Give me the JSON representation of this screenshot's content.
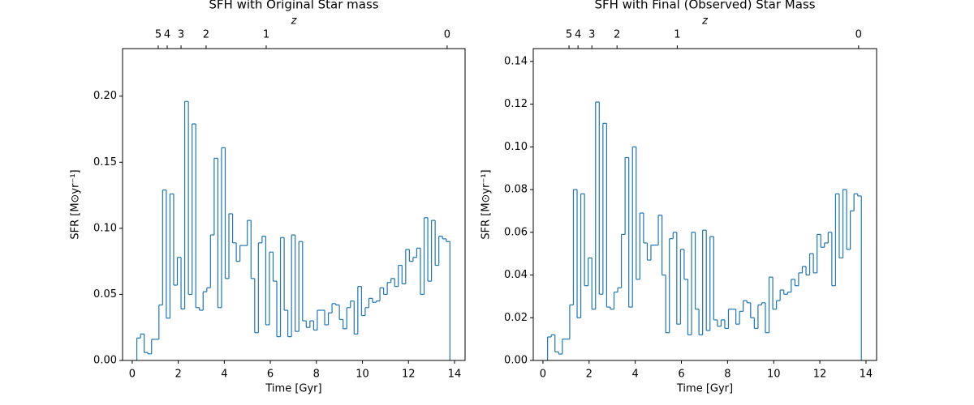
{
  "chart_data": [
    {
      "type": "histogram",
      "title": "SFH with Original Star mass",
      "xlabel": "Time [Gyr]",
      "ylabel": "SFR [M⊙yr⁻¹]",
      "x2label": "z",
      "color": "#1f77b4",
      "bins": [
        0.2,
        0.36,
        0.52,
        0.68,
        0.84,
        1.0,
        1.16,
        1.32,
        1.48,
        1.64,
        1.8,
        1.96,
        2.12,
        2.28,
        2.44,
        2.6,
        2.76,
        2.92,
        3.08,
        3.24,
        3.4,
        3.56,
        3.72,
        3.88,
        4.04,
        4.2,
        4.36,
        4.52,
        4.68,
        4.84,
        5.0,
        5.16,
        5.32,
        5.48,
        5.64,
        5.8,
        5.96,
        6.12,
        6.28,
        6.44,
        6.6,
        6.76,
        6.92,
        7.08,
        7.24,
        7.4,
        7.56,
        7.72,
        7.88,
        8.04,
        8.2,
        8.36,
        8.52,
        8.68,
        8.84,
        9.0,
        9.16,
        9.32,
        9.48,
        9.64,
        9.8,
        9.96,
        10.12,
        10.28,
        10.44,
        10.6,
        10.76,
        10.92,
        11.08,
        11.24,
        11.4,
        11.56,
        11.72,
        11.88,
        12.04,
        12.2,
        12.36,
        12.52,
        12.68,
        12.84,
        13.0,
        13.16,
        13.32,
        13.48,
        13.64,
        13.8
      ],
      "values": [
        0.017,
        0.02,
        0.006,
        0.005,
        0.016,
        0.016,
        0.042,
        0.129,
        0.032,
        0.126,
        0.057,
        0.078,
        0.039,
        0.196,
        0.05,
        0.179,
        0.04,
        0.038,
        0.052,
        0.055,
        0.095,
        0.153,
        0.04,
        0.161,
        0.062,
        0.111,
        0.089,
        0.075,
        0.087,
        0.087,
        0.106,
        0.062,
        0.021,
        0.089,
        0.094,
        0.027,
        0.082,
        0.06,
        0.018,
        0.093,
        0.038,
        0.018,
        0.095,
        0.022,
        0.09,
        0.03,
        0.025,
        0.03,
        0.023,
        0.038,
        0.038,
        0.027,
        0.036,
        0.043,
        0.042,
        0.031,
        0.024,
        0.04,
        0.045,
        0.02,
        0.056,
        0.034,
        0.04,
        0.047,
        0.044,
        0.045,
        0.055,
        0.05,
        0.059,
        0.062,
        0.056,
        0.072,
        0.058,
        0.084,
        0.075,
        0.078,
        0.085,
        0.05,
        0.108,
        0.06,
        0.106,
        0.072,
        0.094,
        0.092,
        0.09
      ],
      "xlim": [
        -0.42,
        14.46
      ],
      "ylim": [
        0,
        0.236
      ],
      "xticks": [
        0,
        2,
        4,
        6,
        8,
        10,
        12,
        14
      ],
      "yticks": [
        {
          "value": 0,
          "label": "0.00"
        },
        {
          "value": 0.05,
          "label": "0.05"
        },
        {
          "value": 0.1,
          "label": "0.10"
        },
        {
          "value": 0.15,
          "label": "0.15"
        },
        {
          "value": 0.2,
          "label": "0.20"
        }
      ],
      "x2ticks": [
        {
          "value": 1.13,
          "label": "5"
        },
        {
          "value": 1.52,
          "label": "4"
        },
        {
          "value": 2.12,
          "label": "3"
        },
        {
          "value": 3.21,
          "label": "2"
        },
        {
          "value": 5.82,
          "label": "1"
        },
        {
          "value": 13.68,
          "label": "0"
        }
      ]
    },
    {
      "type": "histogram",
      "title": "SFH with Final (Observed) Star Mass",
      "xlabel": "Time [Gyr]",
      "ylabel": "SFR [M⊙yr⁻¹]",
      "x2label": "z",
      "color": "#1f77b4",
      "bins": [
        0.2,
        0.36,
        0.52,
        0.68,
        0.84,
        1.0,
        1.16,
        1.32,
        1.48,
        1.64,
        1.8,
        1.96,
        2.12,
        2.28,
        2.44,
        2.6,
        2.76,
        2.92,
        3.08,
        3.24,
        3.4,
        3.56,
        3.72,
        3.88,
        4.04,
        4.2,
        4.36,
        4.52,
        4.68,
        4.84,
        5.0,
        5.16,
        5.32,
        5.48,
        5.64,
        5.8,
        5.96,
        6.12,
        6.28,
        6.44,
        6.6,
        6.76,
        6.92,
        7.08,
        7.24,
        7.4,
        7.56,
        7.72,
        7.88,
        8.04,
        8.2,
        8.36,
        8.52,
        8.68,
        8.84,
        9.0,
        9.16,
        9.32,
        9.48,
        9.64,
        9.8,
        9.96,
        10.12,
        10.28,
        10.44,
        10.6,
        10.76,
        10.92,
        11.08,
        11.24,
        11.4,
        11.56,
        11.72,
        11.88,
        12.04,
        12.2,
        12.36,
        12.52,
        12.68,
        12.84,
        13.0,
        13.16,
        13.32,
        13.48,
        13.64,
        13.8
      ],
      "values": [
        0.011,
        0.012,
        0.004,
        0.003,
        0.01,
        0.01,
        0.026,
        0.08,
        0.02,
        0.078,
        0.035,
        0.048,
        0.024,
        0.121,
        0.031,
        0.111,
        0.025,
        0.024,
        0.032,
        0.034,
        0.059,
        0.095,
        0.025,
        0.1,
        0.038,
        0.069,
        0.055,
        0.047,
        0.054,
        0.054,
        0.068,
        0.04,
        0.013,
        0.057,
        0.06,
        0.017,
        0.052,
        0.038,
        0.012,
        0.06,
        0.024,
        0.012,
        0.061,
        0.014,
        0.058,
        0.019,
        0.016,
        0.019,
        0.015,
        0.024,
        0.024,
        0.017,
        0.023,
        0.028,
        0.027,
        0.02,
        0.015,
        0.026,
        0.027,
        0.013,
        0.039,
        0.024,
        0.028,
        0.033,
        0.031,
        0.032,
        0.038,
        0.035,
        0.041,
        0.044,
        0.04,
        0.05,
        0.041,
        0.059,
        0.053,
        0.055,
        0.06,
        0.035,
        0.078,
        0.048,
        0.08,
        0.052,
        0.07,
        0.078,
        0.077
      ],
      "xlim": [
        -0.42,
        14.46
      ],
      "ylim": [
        0,
        0.146
      ],
      "xticks": [
        0,
        2,
        4,
        6,
        8,
        10,
        12,
        14
      ],
      "yticks": [
        {
          "value": 0,
          "label": "0.00"
        },
        {
          "value": 0.02,
          "label": "0.02"
        },
        {
          "value": 0.04,
          "label": "0.04"
        },
        {
          "value": 0.06,
          "label": "0.06"
        },
        {
          "value": 0.08,
          "label": "0.08"
        },
        {
          "value": 0.1,
          "label": "0.10"
        },
        {
          "value": 0.12,
          "label": "0.12"
        },
        {
          "value": 0.14,
          "label": "0.14"
        }
      ],
      "x2ticks": [
        {
          "value": 1.13,
          "label": "5"
        },
        {
          "value": 1.52,
          "label": "4"
        },
        {
          "value": 2.12,
          "label": "3"
        },
        {
          "value": 3.21,
          "label": "2"
        },
        {
          "value": 5.82,
          "label": "1"
        },
        {
          "value": 13.68,
          "label": "0"
        }
      ]
    }
  ]
}
